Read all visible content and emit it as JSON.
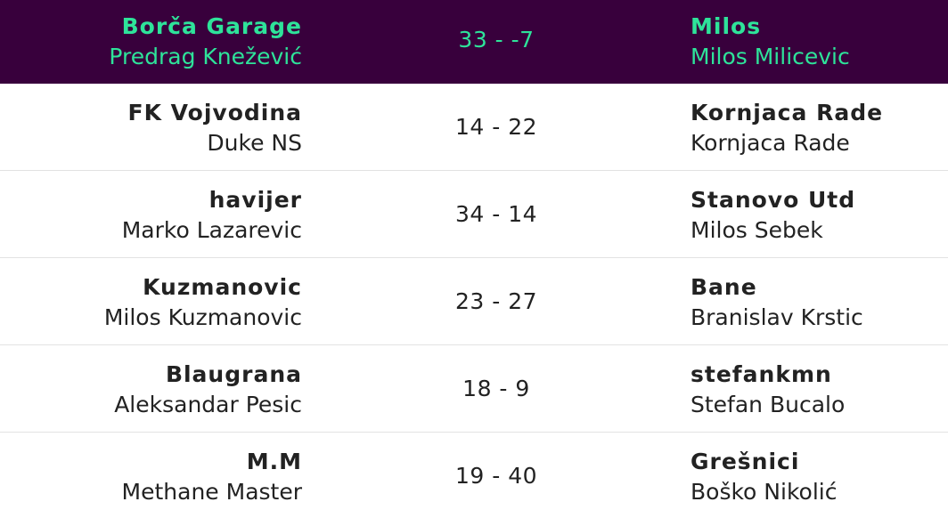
{
  "colors": {
    "highlight_bg": "#38003c",
    "highlight_text": "#2ee39a",
    "text": "#222222",
    "divider": "#e2e2e2"
  },
  "fixtures": [
    {
      "home_team": "Borča Garage",
      "home_manager": "Predrag Knežević",
      "score": "33 - -7",
      "away_team": "Milos",
      "away_manager": "Milos Milicevic",
      "highlighted": true
    },
    {
      "home_team": "FK Vojvodina",
      "home_manager": "Duke NS",
      "score": "14 - 22",
      "away_team": "Kornjaca Rade",
      "away_manager": "Kornjaca Rade",
      "highlighted": false
    },
    {
      "home_team": "havijer",
      "home_manager": "Marko Lazarevic",
      "score": "34 - 14",
      "away_team": "Stanovo Utd",
      "away_manager": "Milos Sebek",
      "highlighted": false
    },
    {
      "home_team": "Kuzmanovic",
      "home_manager": "Milos Kuzmanovic",
      "score": "23 - 27",
      "away_team": "Bane",
      "away_manager": "Branislav Krstic",
      "highlighted": false
    },
    {
      "home_team": "Blaugrana",
      "home_manager": "Aleksandar Pesic",
      "score": "18 - 9",
      "away_team": "stefankmn",
      "away_manager": "Stefan Bucalo",
      "highlighted": false
    },
    {
      "home_team": "M.M",
      "home_manager": "Methane Master",
      "score": "19 - 40",
      "away_team": "Grešnici",
      "away_manager": "Boško Nikolić",
      "highlighted": false
    }
  ]
}
